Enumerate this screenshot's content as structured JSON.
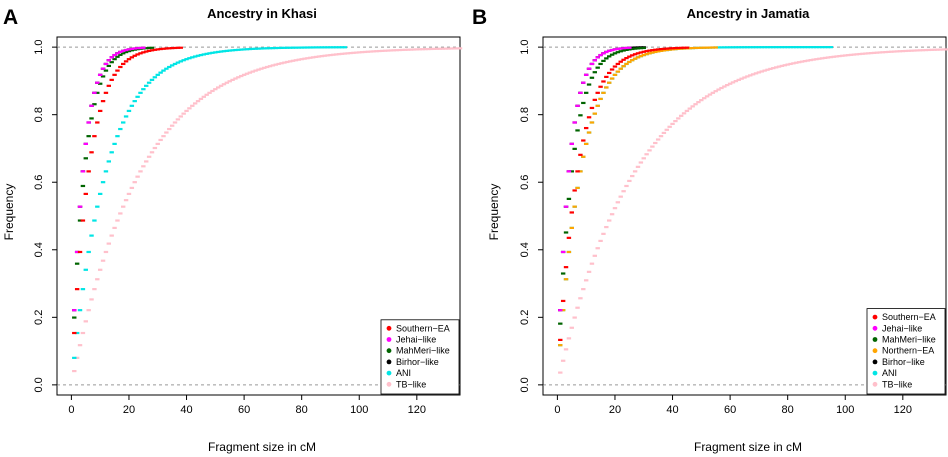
{
  "chart_data": [
    {
      "type": "scatter",
      "panel_label": "A",
      "title": "Ancestry in Khasi",
      "xlabel": "Fragment size in cM",
      "ylabel": "Frequency",
      "xlim": [
        -5,
        135
      ],
      "ylim": [
        -0.03,
        1.03
      ],
      "xticks": [
        0,
        20,
        40,
        60,
        80,
        100,
        120
      ],
      "yticks": [
        0.0,
        0.2,
        0.4,
        0.6,
        0.8,
        1.0
      ],
      "reference_lines": [
        0,
        1
      ],
      "legend_position": "bottom-right",
      "series": [
        {
          "name": "Southern−EA",
          "color": "#ff0000",
          "scale": 6,
          "max_x": 38
        },
        {
          "name": "Jehai−like",
          "color": "#ff00ff",
          "scale": 4,
          "max_x": 25
        },
        {
          "name": "MahMeri−like",
          "color": "#006400",
          "scale": 4.5,
          "max_x": 28
        },
        {
          "name": "Birhor−like",
          "color": "#000000",
          "scale": 4,
          "max_x": 25
        },
        {
          "name": "ANI",
          "color": "#00e5e5",
          "scale": 12,
          "max_x": 95
        },
        {
          "name": "TB−like",
          "color": "#ffc0cb",
          "scale": 24,
          "max_x": 135
        }
      ]
    },
    {
      "type": "scatter",
      "panel_label": "B",
      "title": "Ancestry in Jamatia",
      "xlabel": "Fragment size in cM",
      "ylabel": "Frequency",
      "xlim": [
        -5,
        135
      ],
      "ylim": [
        -0.03,
        1.03
      ],
      "xticks": [
        0,
        20,
        40,
        60,
        80,
        100,
        120
      ],
      "yticks": [
        0.0,
        0.2,
        0.4,
        0.6,
        0.8,
        1.0
      ],
      "reference_lines": [
        0,
        1
      ],
      "legend_position": "bottom-right",
      "series": [
        {
          "name": "Southern−EA",
          "color": "#ff0000",
          "scale": 7,
          "max_x": 45
        },
        {
          "name": "Jehai−like",
          "color": "#ff00ff",
          "scale": 4,
          "max_x": 25
        },
        {
          "name": "MahMeri−like",
          "color": "#006400",
          "scale": 5,
          "max_x": 30
        },
        {
          "name": "Northern−EA",
          "color": "#ffa500",
          "scale": 8,
          "max_x": 55
        },
        {
          "name": "Birhor−like",
          "color": "#000000",
          "scale": 4,
          "max_x": 30
        },
        {
          "name": "ANI",
          "color": "#00e5e5",
          "scale": 8,
          "max_x": 95
        },
        {
          "name": "TB−like",
          "color": "#ffc0cb",
          "scale": 27,
          "max_x": 135
        }
      ]
    }
  ]
}
